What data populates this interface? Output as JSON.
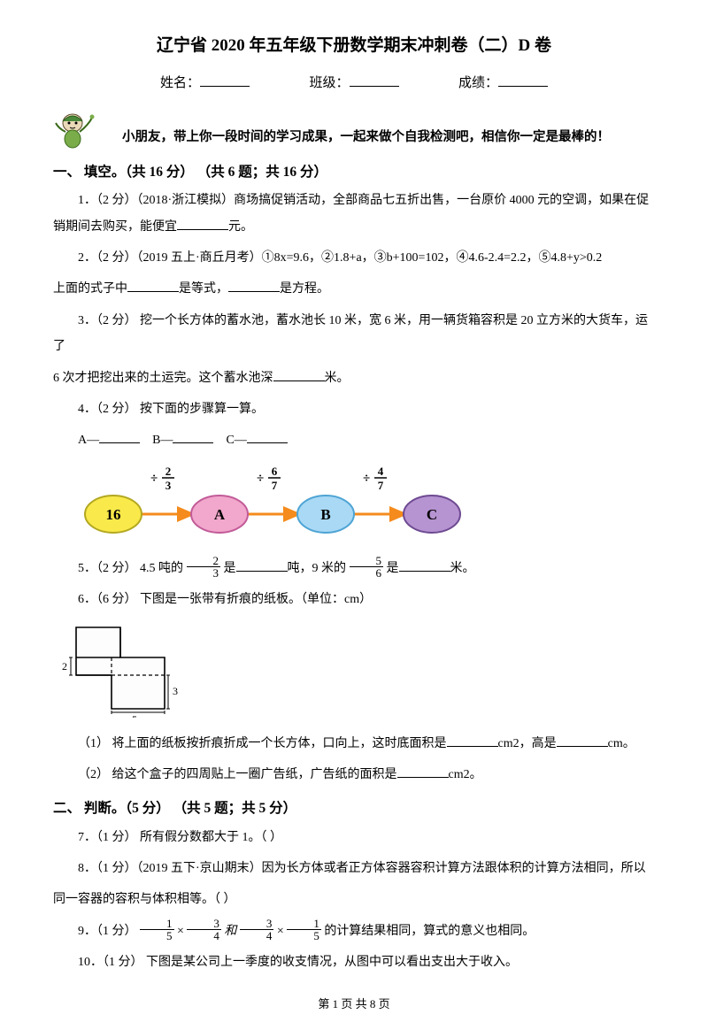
{
  "title": "辽宁省 2020 年五年级下册数学期末冲刺卷（二）D 卷",
  "header": {
    "name_label": "姓名：",
    "class_label": "班级：",
    "score_label": "成绩："
  },
  "encourage": "小朋友，带上你一段时间的学习成果，一起来做个自我检测吧，相信你一定是最棒的！",
  "section1": {
    "heading": "一、 填空。（共 16 分） （共 6 题；共 16 分）",
    "q1": "1．（2 分）（2018·浙江模拟）商场搞促销活动，全部商品七五折出售，一台原价 4000 元的空调，如果在促销期间去购买，能便宜",
    "q1_tail": "元。",
    "q2": "2．（2 分）（2019 五上·商丘月考）①8x=9.6，②1.8+a，③b+100=102，④4.6-2.4=2.2，⑤4.8+y>0.2",
    "q2_line2a": "上面的式子中",
    "q2_line2b": "是等式，",
    "q2_line2c": "是方程。",
    "q3a": "3．（2 分） 挖一个长方体的蓄水池，蓄水池长 10 米，宽 6 米，用一辆货箱容积是 20 立方米的大货车，运了",
    "q3b": "6 次才把挖出来的土运完。这个蓄水池深",
    "q3c": "米。",
    "q4": "4．（2 分） 按下面的步骤算一算。",
    "q4_labels": {
      "a": "A—",
      "b": "B—",
      "c": "C—"
    },
    "flow": {
      "start": "16",
      "ops": [
        {
          "sym": "÷",
          "num": "2",
          "den": "3"
        },
        {
          "sym": "÷",
          "num": "6",
          "den": "7"
        },
        {
          "sym": "÷",
          "num": "4",
          "den": "7"
        }
      ],
      "nodes": [
        "A",
        "B",
        "C"
      ],
      "colors": {
        "start_fill": "#f9e94a",
        "start_stroke": "#b3a821",
        "a_fill": "#f2a7cc",
        "a_stroke": "#c25b98",
        "b_fill": "#a9d9f5",
        "b_stroke": "#4ea4d4",
        "c_fill": "#b693d1",
        "c_stroke": "#6e4a92",
        "arrow": "#f48b1c",
        "text": "#000000"
      }
    },
    "q5a": "5．（2 分） 4.5 吨的 ",
    "q5_frac1": {
      "num": "2",
      "den": "3"
    },
    "q5b": " 是",
    "q5c": "吨，9 米的 ",
    "q5_frac2": {
      "num": "5",
      "den": "6"
    },
    "q5d": " 是",
    "q5e": "米。",
    "q6": "6．（6 分） 下图是一张带有折痕的纸板。（单位：cm）",
    "fold": {
      "left_label": "2",
      "right_label": "3",
      "bottom_label": "5",
      "stroke": "#000000",
      "fill": "#fdfdfd"
    },
    "q6_1a": "（1） 将上面的纸板按折痕折成一个长方体，口向上，这时底面积是",
    "q6_1b": "cm2，高是",
    "q6_1c": "cm。",
    "q6_2a": "（2） 给这个盒子的四周贴上一圈广告纸，广告纸的面积是",
    "q6_2b": "cm2。"
  },
  "section2": {
    "heading": "二、 判断。（5 分） （共 5 题；共 5 分）",
    "q7": "7．（1 分） 所有假分数都大于 1。（    ）",
    "q8a": "8．（1 分）（2019 五下·京山期末）因为长方体或者正方体容器容积计算方法跟体积的计算方法相同，所以",
    "q8b": "同一容器的容积与体积相等。（    ）",
    "q9a": "9．（1 分） ",
    "q9_f1": {
      "n": "1",
      "d": "5"
    },
    "q9_x1": "×",
    "q9_f2": {
      "n": "3",
      "d": "4"
    },
    "q9_and": "和",
    "q9_f3": {
      "n": "3",
      "d": "4"
    },
    "q9_x2": "×",
    "q9_f4": {
      "n": "1",
      "d": "5"
    },
    "q9b": " 的计算结果相同，算式的意义也相同。",
    "q10": "10．（1 分） 下图是某公司上一季度的收支情况，从图中可以看出支出大于收入。"
  },
  "footer": "第 1 页 共 8 页"
}
